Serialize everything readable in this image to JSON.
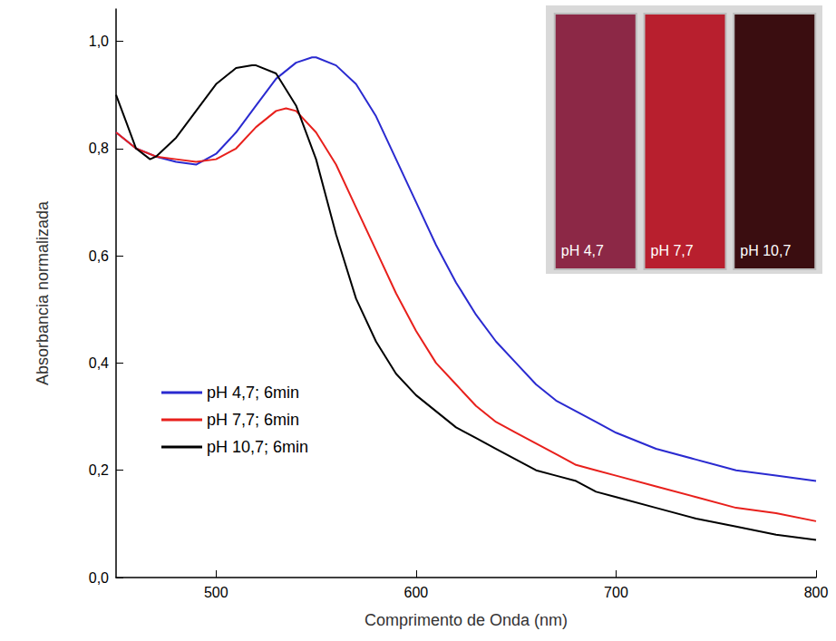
{
  "chart_data": {
    "type": "line",
    "x_label": "Comprimento de Onda (nm)",
    "y_label": "Absorbancia normalizada",
    "xlim": [
      450,
      800
    ],
    "xticks": [
      500,
      600,
      700,
      800
    ],
    "ylim": [
      0,
      1.06
    ],
    "yticks": [
      {
        "value": 0,
        "label": "0,0"
      },
      {
        "value": 0.2,
        "label": "0,2"
      },
      {
        "value": 0.4,
        "label": "0,4"
      },
      {
        "value": 0.6,
        "label": "0,6"
      },
      {
        "value": 0.8,
        "label": "0,8"
      },
      {
        "value": 1.0,
        "label": "1,0"
      }
    ],
    "grid": false,
    "legend": "lower left",
    "series": [
      {
        "name": "pH 4,7; 6min",
        "color": "#2a2ad0",
        "x": [
          450,
          460,
          470,
          480,
          490,
          500,
          510,
          520,
          530,
          540,
          548,
          550,
          560,
          570,
          580,
          590,
          600,
          610,
          620,
          630,
          640,
          650,
          660,
          670,
          680,
          690,
          700,
          720,
          740,
          760,
          780,
          800
        ],
        "values": [
          0.83,
          0.8,
          0.785,
          0.775,
          0.77,
          0.79,
          0.83,
          0.88,
          0.93,
          0.96,
          0.97,
          0.97,
          0.955,
          0.92,
          0.86,
          0.78,
          0.7,
          0.62,
          0.55,
          0.49,
          0.44,
          0.4,
          0.36,
          0.33,
          0.31,
          0.29,
          0.27,
          0.24,
          0.22,
          0.2,
          0.19,
          0.18
        ]
      },
      {
        "name": "pH 7,7; 6min",
        "color": "#e8201c",
        "x": [
          450,
          460,
          470,
          480,
          490,
          500,
          510,
          520,
          530,
          535,
          540,
          550,
          560,
          570,
          580,
          590,
          600,
          610,
          620,
          630,
          640,
          650,
          660,
          670,
          680,
          690,
          700,
          720,
          740,
          760,
          780,
          800
        ],
        "values": [
          0.83,
          0.8,
          0.785,
          0.78,
          0.775,
          0.78,
          0.8,
          0.84,
          0.87,
          0.875,
          0.87,
          0.83,
          0.77,
          0.69,
          0.61,
          0.53,
          0.46,
          0.4,
          0.36,
          0.32,
          0.29,
          0.27,
          0.25,
          0.23,
          0.21,
          0.2,
          0.19,
          0.17,
          0.15,
          0.13,
          0.12,
          0.105
        ]
      },
      {
        "name": "pH 10,7; 6min",
        "color": "#000000",
        "x": [
          450,
          455,
          460,
          467,
          470,
          480,
          490,
          500,
          510,
          518,
          520,
          530,
          540,
          550,
          560,
          570,
          580,
          590,
          600,
          610,
          620,
          630,
          640,
          650,
          660,
          670,
          680,
          690,
          700,
          720,
          740,
          760,
          780,
          800
        ],
        "values": [
          0.9,
          0.85,
          0.8,
          0.78,
          0.785,
          0.82,
          0.87,
          0.92,
          0.95,
          0.955,
          0.955,
          0.94,
          0.88,
          0.78,
          0.64,
          0.52,
          0.44,
          0.38,
          0.34,
          0.31,
          0.28,
          0.26,
          0.24,
          0.22,
          0.2,
          0.19,
          0.18,
          0.16,
          0.15,
          0.13,
          0.11,
          0.095,
          0.08,
          0.07
        ]
      }
    ],
    "inset": {
      "labels": [
        "pH 4,7",
        "pH 7,7",
        "pH 10,7"
      ],
      "colors": [
        "#8c2846",
        "#b81f2e",
        "#3a0d10"
      ]
    }
  }
}
